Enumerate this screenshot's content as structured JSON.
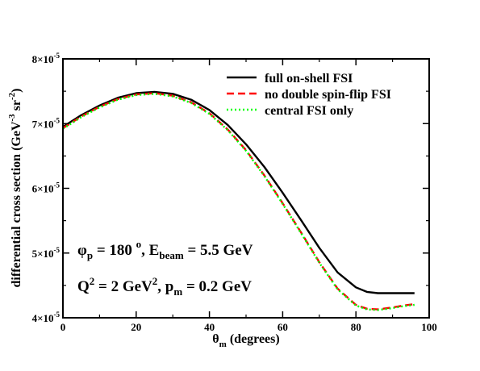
{
  "chart_data": {
    "type": "line",
    "xlabel": {
      "main": "θ",
      "sub": "m",
      "rest": " (degrees)"
    },
    "ylabel": {
      "t1": "differential cross section (GeV",
      "s1": "-3",
      "t2": " sr",
      "s2": "-2",
      "t3": ")"
    },
    "xlim": [
      0,
      100
    ],
    "ylim": [
      4e-05,
      8e-05
    ],
    "x_ticks": [
      {
        "value": 0,
        "label": "0"
      },
      {
        "value": 20,
        "label": "20"
      },
      {
        "value": 40,
        "label": "40"
      },
      {
        "value": 60,
        "label": "60"
      },
      {
        "value": 80,
        "label": "80"
      },
      {
        "value": 100,
        "label": "100"
      }
    ],
    "y_ticks": [
      {
        "value": 4e-05,
        "mant": "4×10",
        "exp": "-5"
      },
      {
        "value": 5e-05,
        "mant": "5×10",
        "exp": "-5"
      },
      {
        "value": 6e-05,
        "mant": "6×10",
        "exp": "-5"
      },
      {
        "value": 7e-05,
        "mant": "7×10",
        "exp": "-5"
      },
      {
        "value": 8e-05,
        "mant": "8×10",
        "exp": "-5"
      }
    ],
    "legend_position": "top-right",
    "annotations": {
      "line1": {
        "phi": "φ",
        "phi_sub": "p",
        "eq1": " = 180 ",
        "deg": "o",
        "e": ", E",
        "e_sub": "beam",
        "eq2": " = 5.5 GeV"
      },
      "line2": {
        "q": "Q",
        "q_sup": "2",
        "eq1": " = 2 GeV",
        "gev_sup": "2",
        "p": ", p",
        "p_sub": "m",
        "eq2": " = 0.2 GeV"
      }
    },
    "series": [
      {
        "name": "full on-shell FSI",
        "color": "#000000",
        "style": "solid",
        "x": [
          0,
          5,
          10,
          15,
          20,
          25,
          30,
          35,
          40,
          45,
          50,
          55,
          60,
          65,
          70,
          75,
          80,
          83,
          86,
          90,
          93,
          96
        ],
        "y": [
          6.95e-05,
          7.13e-05,
          7.28e-05,
          7.4e-05,
          7.47e-05,
          7.49e-05,
          7.46e-05,
          7.37e-05,
          7.21e-05,
          6.98e-05,
          6.68e-05,
          6.33e-05,
          5.93e-05,
          5.51e-05,
          5.08e-05,
          4.7e-05,
          4.47e-05,
          4.4e-05,
          4.38e-05,
          4.38e-05,
          4.38e-05,
          4.38e-05
        ]
      },
      {
        "name": "no double spin-flip FSI",
        "color": "#ff0000",
        "style": "dashed",
        "x": [
          0,
          5,
          10,
          15,
          20,
          25,
          30,
          35,
          40,
          45,
          50,
          55,
          60,
          65,
          70,
          75,
          80,
          83,
          86,
          90,
          93,
          96
        ],
        "y": [
          6.93e-05,
          7.11e-05,
          7.26e-05,
          7.38e-05,
          7.45e-05,
          7.47e-05,
          7.43e-05,
          7.33e-05,
          7.16e-05,
          6.91e-05,
          6.59e-05,
          6.2e-05,
          5.77e-05,
          5.32e-05,
          4.86e-05,
          4.45e-05,
          4.2e-05,
          4.14e-05,
          4.13e-05,
          4.16e-05,
          4.19e-05,
          4.21e-05
        ]
      },
      {
        "name": "central FSI only",
        "color": "#00ff00",
        "style": "dotted",
        "x": [
          0,
          5,
          10,
          15,
          20,
          25,
          30,
          35,
          40,
          45,
          50,
          55,
          60,
          65,
          70,
          75,
          80,
          83,
          86,
          90,
          93,
          96
        ],
        "y": [
          6.92e-05,
          7.1e-05,
          7.25e-05,
          7.37e-05,
          7.44e-05,
          7.46e-05,
          7.42e-05,
          7.32e-05,
          7.15e-05,
          6.9e-05,
          6.58e-05,
          6.19e-05,
          5.76e-05,
          5.31e-05,
          4.85e-05,
          4.44e-05,
          4.19e-05,
          4.13e-05,
          4.12e-05,
          4.15e-05,
          4.18e-05,
          4.2e-05
        ]
      }
    ]
  }
}
